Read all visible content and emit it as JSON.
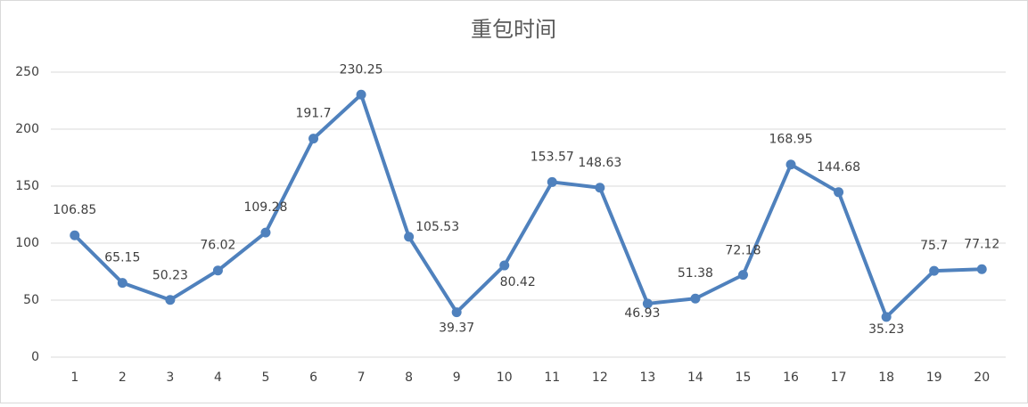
{
  "chart_data": {
    "type": "line",
    "title": "重包时间",
    "categories": [
      1,
      2,
      3,
      4,
      5,
      6,
      7,
      8,
      9,
      10,
      11,
      12,
      13,
      14,
      15,
      16,
      17,
      18,
      19,
      20
    ],
    "series": [
      {
        "name": "重包时间",
        "color": "#4f81bd",
        "values": [
          106.85,
          65.15,
          50.23,
          76.02,
          109.28,
          191.7,
          230.25,
          105.53,
          39.37,
          80.42,
          153.57,
          148.63,
          46.93,
          51.38,
          72.18,
          168.95,
          144.68,
          35.23,
          75.7,
          77.12
        ]
      }
    ],
    "ylim": [
      0,
      250
    ],
    "yticks": [
      0,
      50,
      100,
      150,
      200,
      250
    ],
    "grid": true
  }
}
